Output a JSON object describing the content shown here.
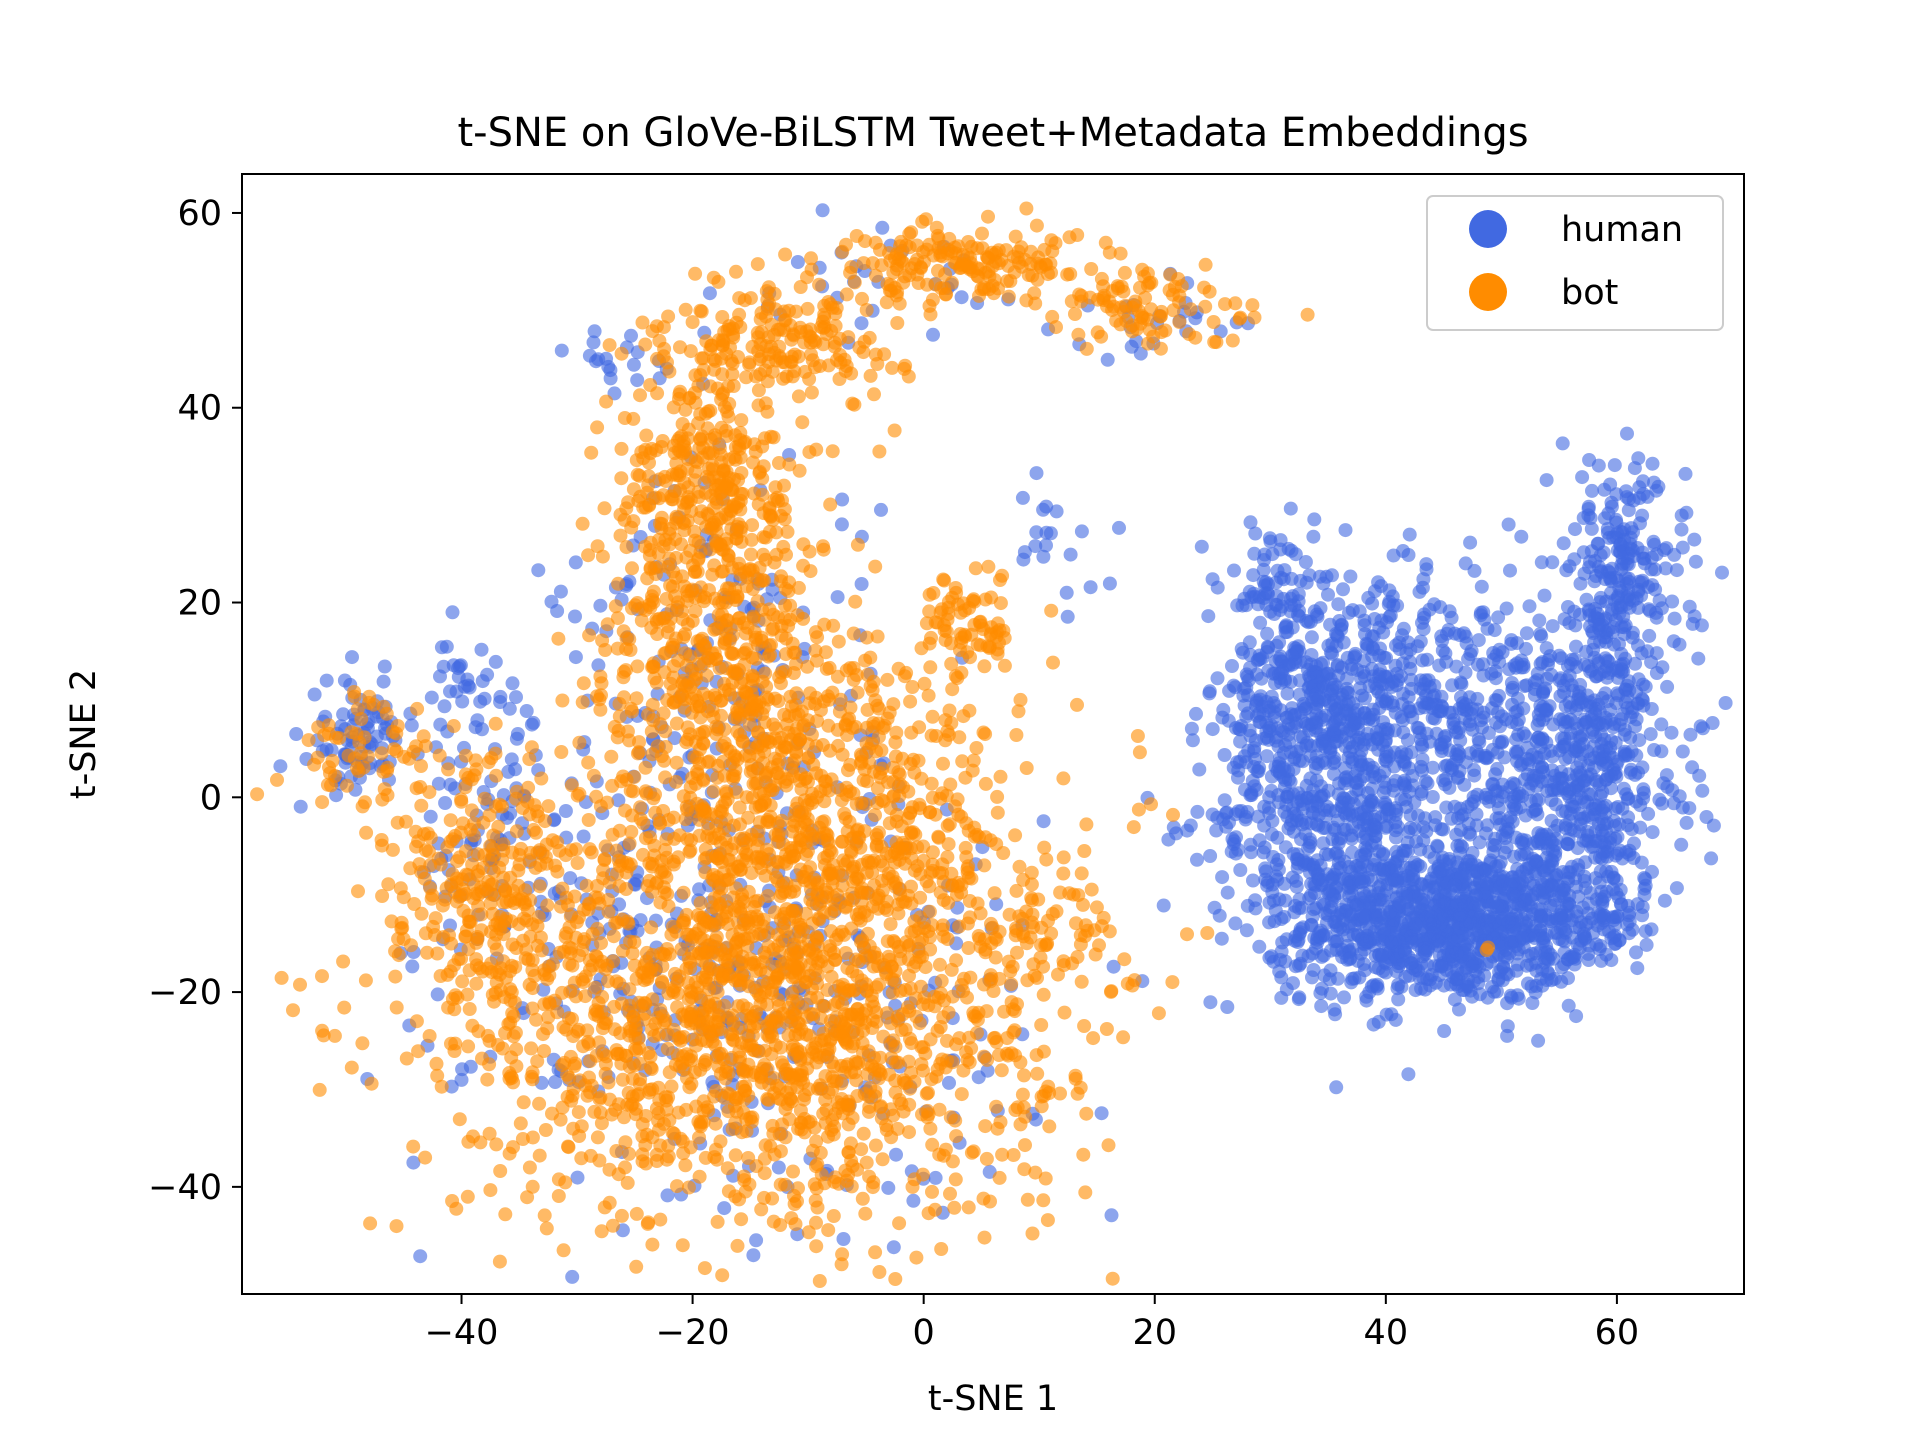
{
  "chart_data": {
    "type": "scatter",
    "title": "t-SNE on GloVe-BiLSTM Tweet+Metadata Embeddings",
    "xlabel": "t-SNE 1",
    "ylabel": "t-SNE 2",
    "xlim": [
      -59,
      71
    ],
    "ylim": [
      -51,
      64
    ],
    "xticks": [
      -40,
      -20,
      0,
      20,
      40,
      60
    ],
    "yticks": [
      -40,
      -20,
      0,
      20,
      40,
      60
    ],
    "xtick_labels": [
      "−40",
      "−20",
      "0",
      "20",
      "40",
      "60"
    ],
    "ytick_labels": [
      "−40",
      "−20",
      "0",
      "20",
      "40",
      "60"
    ],
    "grid": false,
    "legend_position": "top-right",
    "series": [
      {
        "name": "human",
        "color": "#4169e1",
        "regions": [
          {
            "cx": 45,
            "cy": -13,
            "sx": 6,
            "sy": 4,
            "n": 900
          },
          {
            "cx": 35,
            "cy": -2,
            "sx": 5,
            "sy": 8,
            "n": 500
          },
          {
            "cx": 32,
            "cy": 10,
            "sx": 3,
            "sy": 7,
            "n": 250
          },
          {
            "cx": 50,
            "cy": 5,
            "sx": 7,
            "sy": 8,
            "n": 500
          },
          {
            "cx": 58,
            "cy": 3,
            "sx": 4,
            "sy": 7,
            "n": 300
          },
          {
            "cx": 60,
            "cy": 22,
            "sx": 3,
            "sy": 6,
            "n": 250
          },
          {
            "cx": 40,
            "cy": 12,
            "sx": 4,
            "sy": 5,
            "n": 200
          },
          {
            "cx": 55,
            "cy": -12,
            "sx": 4,
            "sy": 4,
            "n": 200
          },
          {
            "cx": 30,
            "cy": 22,
            "sx": 2,
            "sy": 3,
            "n": 60
          },
          {
            "cx": -49,
            "cy": 6,
            "sx": 2,
            "sy": 3,
            "n": 80
          },
          {
            "cx": -39,
            "cy": 10,
            "sx": 2,
            "sy": 3,
            "n": 40
          },
          {
            "cx": -15,
            "cy": -20,
            "sx": 12,
            "sy": 11,
            "n": 350
          },
          {
            "cx": -18,
            "cy": 10,
            "sx": 7,
            "sy": 12,
            "n": 200
          },
          {
            "cx": -25,
            "cy": 45,
            "sx": 3,
            "sy": 2,
            "n": 20
          },
          {
            "cx": -5,
            "cy": 52,
            "sx": 6,
            "sy": 3,
            "n": 30
          },
          {
            "cx": 20,
            "cy": 49,
            "sx": 4,
            "sy": 2,
            "n": 25
          },
          {
            "cx": 11,
            "cy": 26,
            "sx": 2,
            "sy": 3,
            "n": 20
          },
          {
            "cx": -37,
            "cy": -5,
            "sx": 4,
            "sy": 6,
            "n": 80
          }
        ]
      },
      {
        "name": "bot",
        "color": "#ff8c00",
        "regions": [
          {
            "cx": -14,
            "cy": -22,
            "sx": 13,
            "sy": 11,
            "n": 1700
          },
          {
            "cx": -10,
            "cy": 0,
            "sx": 9,
            "sy": 9,
            "n": 700
          },
          {
            "cx": -18,
            "cy": 18,
            "sx": 5,
            "sy": 9,
            "n": 450
          },
          {
            "cx": -19,
            "cy": 35,
            "sx": 3,
            "sy": 6,
            "n": 220
          },
          {
            "cx": -12,
            "cy": 47,
            "sx": 5,
            "sy": 3,
            "n": 180
          },
          {
            "cx": 4,
            "cy": 55,
            "sx": 6,
            "sy": 2,
            "n": 180
          },
          {
            "cx": 20,
            "cy": 50,
            "sx": 5,
            "sy": 2,
            "n": 90
          },
          {
            "cx": 4,
            "cy": 18,
            "sx": 2,
            "sy": 3,
            "n": 70
          },
          {
            "cx": -48,
            "cy": 5,
            "sx": 3,
            "sy": 3,
            "n": 60
          },
          {
            "cx": -38,
            "cy": -10,
            "sx": 4,
            "sy": 8,
            "n": 250
          },
          {
            "cx": 10,
            "cy": -14,
            "sx": 3,
            "sy": 3,
            "n": 50
          },
          {
            "cx": 49,
            "cy": -16,
            "sx": 0.4,
            "sy": 0.4,
            "n": 2
          }
        ]
      }
    ]
  }
}
